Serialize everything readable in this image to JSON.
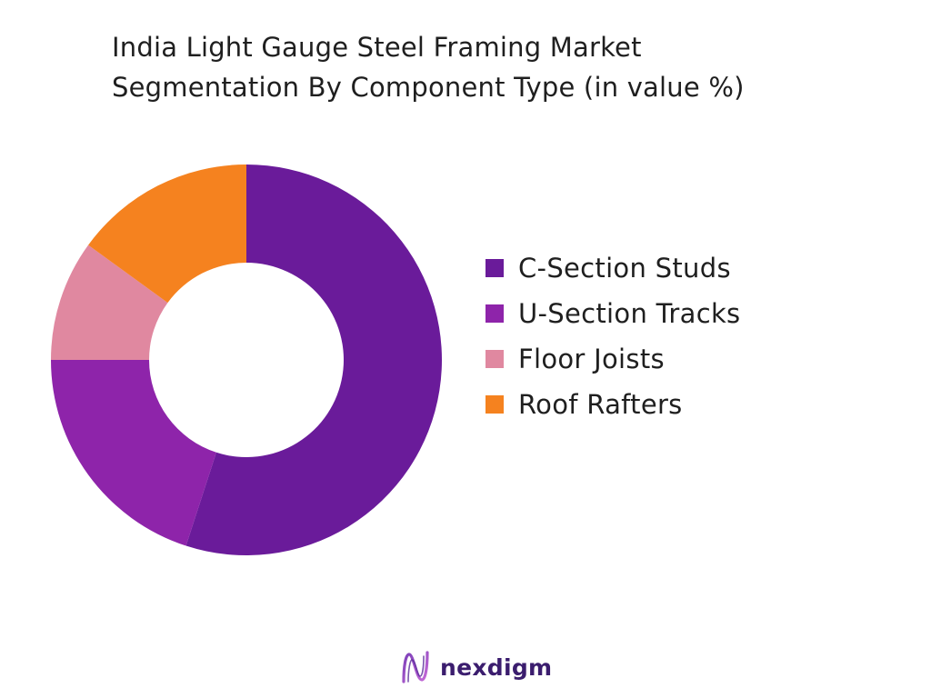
{
  "title": {
    "line1": "India Light Gauge Steel Framing Market",
    "line2": "Segmentation By Component Type (in value %)"
  },
  "chart_data": {
    "type": "pie",
    "subtype": "donut",
    "title": "India Light Gauge Steel Framing Market Segmentation By Component Type (in value %)",
    "categories": [
      "C-Section Studs",
      "U-Section Tracks",
      "Floor Joists",
      "Roof Rafters"
    ],
    "values": [
      55,
      20,
      10,
      15
    ],
    "colors": [
      "#6a1b9a",
      "#8e24aa",
      "#e088a0",
      "#f5821f"
    ],
    "legend_position": "right",
    "start_angle": "top",
    "direction": "clockwise"
  },
  "legend": {
    "items": [
      {
        "label": "C-Section Studs",
        "color": "#6a1b9a"
      },
      {
        "label": "U-Section Tracks",
        "color": "#8e24aa"
      },
      {
        "label": "Floor Joists",
        "color": "#e088a0"
      },
      {
        "label": "Roof Rafters",
        "color": "#f5821f"
      }
    ]
  },
  "logo": {
    "text": "nexdigm",
    "icon": "nexdigm-logo-icon",
    "color": "#3b1d6e"
  }
}
